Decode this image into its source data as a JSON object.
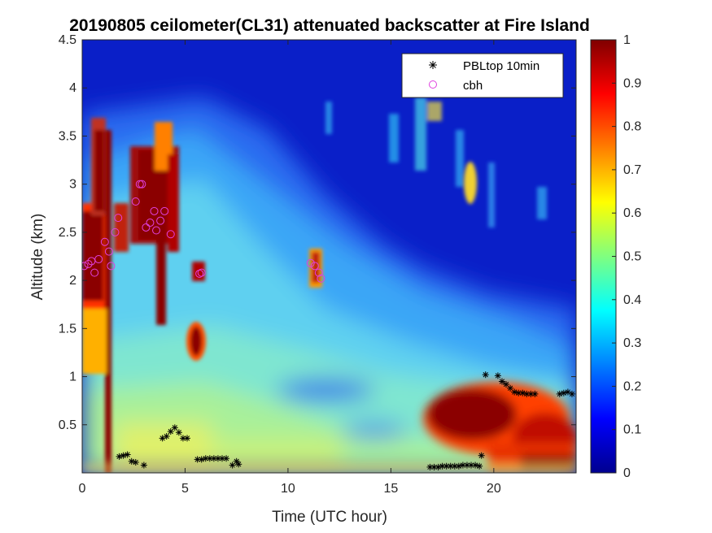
{
  "chart_data": {
    "type": "heatmap",
    "title": "20190805 ceilometer(CL31) attenuated backscatter at Fire Island",
    "xlabel": "Time (UTC hour)",
    "ylabel": "Altitude (km)",
    "xlim": [
      0,
      24
    ],
    "ylim": [
      0,
      4.5
    ],
    "x_ticks": [
      "0",
      "5",
      "10",
      "15",
      "20"
    ],
    "y_ticks": [
      "0.5",
      "1",
      "1.5",
      "2",
      "2.5",
      "3",
      "3.5",
      "4",
      "4.5"
    ],
    "colorbar": {
      "colormap": "jet",
      "range": [
        0,
        1
      ],
      "ticks": [
        "0",
        "0.1",
        "0.2",
        "0.3",
        "0.4",
        "0.5",
        "0.6",
        "0.7",
        "0.8",
        "0.9",
        "1"
      ]
    },
    "legend": {
      "placement": "top-right",
      "entries": [
        {
          "label": "PBLtop 10min",
          "marker": "asterisk",
          "color": "#000000"
        },
        {
          "label": "cbh",
          "marker": "circle",
          "color": "#e040e0"
        }
      ]
    },
    "series": [
      {
        "name": "PBLtop 10min",
        "marker": "asterisk",
        "color": "#000000",
        "points": [
          [
            1.8,
            0.17
          ],
          [
            2.0,
            0.18
          ],
          [
            2.2,
            0.19
          ],
          [
            2.4,
            0.12
          ],
          [
            2.6,
            0.11
          ],
          [
            3.0,
            0.08
          ],
          [
            3.9,
            0.36
          ],
          [
            4.1,
            0.38
          ],
          [
            4.3,
            0.43
          ],
          [
            4.5,
            0.47
          ],
          [
            4.7,
            0.42
          ],
          [
            4.9,
            0.36
          ],
          [
            5.1,
            0.36
          ],
          [
            5.6,
            0.14
          ],
          [
            5.8,
            0.14
          ],
          [
            6.0,
            0.15
          ],
          [
            6.2,
            0.15
          ],
          [
            6.4,
            0.15
          ],
          [
            6.6,
            0.15
          ],
          [
            6.8,
            0.15
          ],
          [
            7.0,
            0.15
          ],
          [
            7.3,
            0.08
          ],
          [
            7.5,
            0.12
          ],
          [
            7.6,
            0.09
          ],
          [
            16.9,
            0.06
          ],
          [
            17.1,
            0.06
          ],
          [
            17.3,
            0.06
          ],
          [
            17.5,
            0.07
          ],
          [
            17.7,
            0.07
          ],
          [
            17.9,
            0.07
          ],
          [
            18.1,
            0.07
          ],
          [
            18.3,
            0.07
          ],
          [
            18.5,
            0.08
          ],
          [
            18.7,
            0.08
          ],
          [
            18.9,
            0.08
          ],
          [
            19.1,
            0.08
          ],
          [
            19.3,
            0.07
          ],
          [
            19.4,
            0.18
          ],
          [
            19.6,
            1.02
          ],
          [
            20.2,
            1.01
          ],
          [
            20.4,
            0.95
          ],
          [
            20.6,
            0.92
          ],
          [
            20.8,
            0.88
          ],
          [
            21.0,
            0.84
          ],
          [
            21.2,
            0.83
          ],
          [
            21.4,
            0.83
          ],
          [
            21.6,
            0.82
          ],
          [
            21.8,
            0.82
          ],
          [
            22.0,
            0.82
          ],
          [
            23.2,
            0.82
          ],
          [
            23.4,
            0.83
          ],
          [
            23.6,
            0.84
          ],
          [
            23.8,
            0.82
          ]
        ]
      },
      {
        "name": "cbh",
        "marker": "circle",
        "color": "#e040e0",
        "points": [
          [
            0.1,
            2.15
          ],
          [
            0.3,
            2.17
          ],
          [
            0.45,
            2.2
          ],
          [
            0.6,
            2.08
          ],
          [
            0.8,
            2.22
          ],
          [
            1.1,
            2.4
          ],
          [
            1.3,
            2.3
          ],
          [
            1.4,
            2.15
          ],
          [
            1.6,
            2.5
          ],
          [
            1.75,
            2.65
          ],
          [
            2.6,
            2.82
          ],
          [
            2.8,
            3.0
          ],
          [
            2.9,
            3.0
          ],
          [
            3.1,
            2.55
          ],
          [
            3.3,
            2.6
          ],
          [
            3.5,
            2.72
          ],
          [
            3.6,
            2.52
          ],
          [
            3.8,
            2.62
          ],
          [
            4.0,
            2.72
          ],
          [
            4.3,
            2.48
          ],
          [
            5.7,
            2.07
          ],
          [
            5.8,
            2.08
          ],
          [
            11.1,
            2.18
          ],
          [
            11.3,
            2.15
          ],
          [
            11.5,
            2.08
          ],
          [
            11.6,
            2.02
          ]
        ]
      }
    ],
    "heatmap_features": [
      {
        "kind": "cloud",
        "x": [
          0.0,
          1.2
        ],
        "y": [
          1.7,
          2.7
        ],
        "value": 1.0
      },
      {
        "kind": "cloud",
        "x": [
          0.3,
          1.0
        ],
        "y": [
          2.7,
          3.7
        ],
        "value": 0.95
      },
      {
        "kind": "cloud",
        "x": [
          1.1,
          1.5
        ],
        "y": [
          0.0,
          2.7
        ],
        "value": 0.9
      },
      {
        "kind": "cloud",
        "x": [
          2.3,
          4.6
        ],
        "y": [
          2.3,
          3.3
        ],
        "value": 1.0
      },
      {
        "kind": "cloud",
        "x": [
          3.8,
          4.3
        ],
        "y": [
          1.5,
          2.6
        ],
        "value": 1.0
      },
      {
        "kind": "cloud",
        "x": [
          5.4,
          5.9
        ],
        "y": [
          1.2,
          1.5
        ],
        "value": 0.95
      },
      {
        "kind": "cloud",
        "x": [
          5.4,
          5.9
        ],
        "y": [
          2.0,
          2.2
        ],
        "value": 0.9
      },
      {
        "kind": "cloud",
        "x": [
          11.0,
          11.7
        ],
        "y": [
          1.9,
          2.3
        ],
        "value": 0.9
      },
      {
        "kind": "cloud",
        "x": [
          18.5,
          19.2
        ],
        "y": [
          2.7,
          3.2
        ],
        "value": 0.7
      },
      {
        "kind": "aerosol_layer",
        "x": [
          17.0,
          24.0
        ],
        "y": [
          0.0,
          1.0
        ],
        "value": 1.0
      }
    ]
  }
}
